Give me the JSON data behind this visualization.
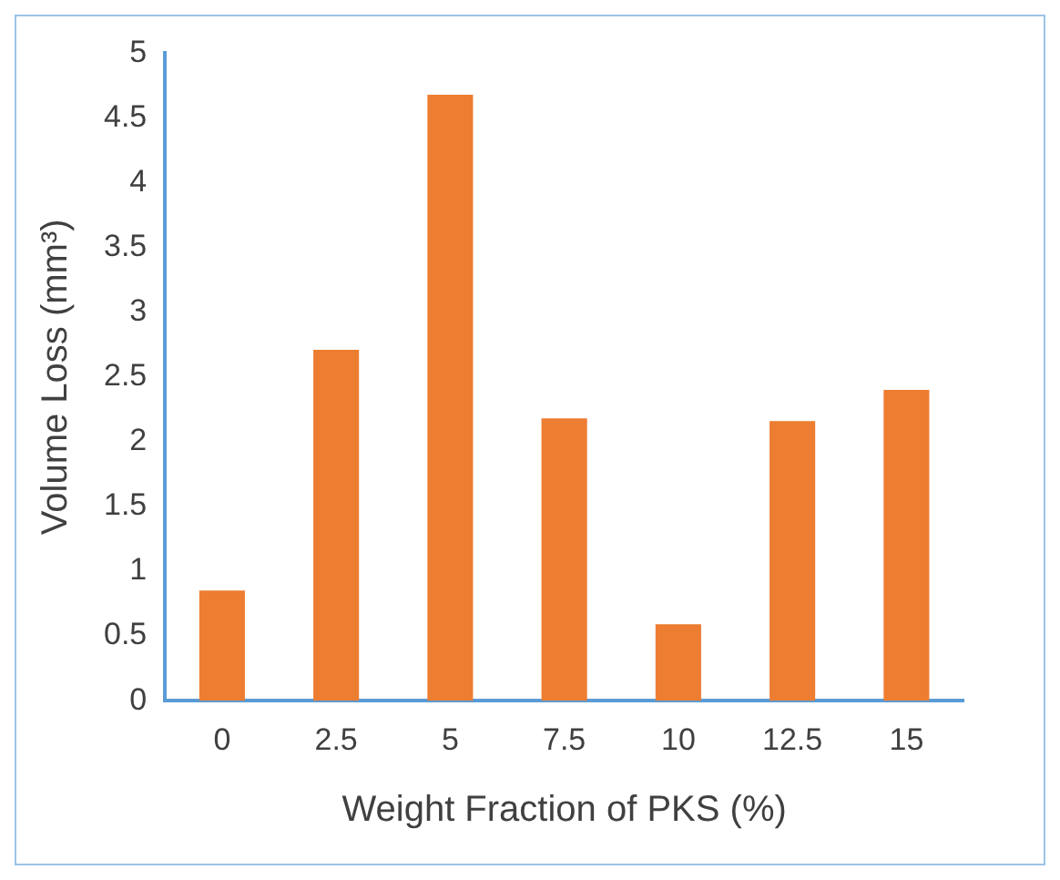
{
  "chart_data": {
    "type": "bar",
    "xlabel": "Weight Fraction of PKS (%)",
    "ylabel": "Volume Loss (mm³)",
    "categories": [
      "0",
      "2.5",
      "5",
      "7.5",
      "10",
      "12.5",
      "15"
    ],
    "values": [
      0.85,
      2.71,
      4.68,
      2.18,
      0.59,
      2.16,
      2.4
    ],
    "color": "#ed7d31",
    "ylim": [
      0,
      5
    ],
    "yticks": [
      0,
      0.5,
      1,
      1.5,
      2,
      2.5,
      3,
      3.5,
      4,
      4.5,
      5
    ],
    "grid": false,
    "legend": false
  }
}
